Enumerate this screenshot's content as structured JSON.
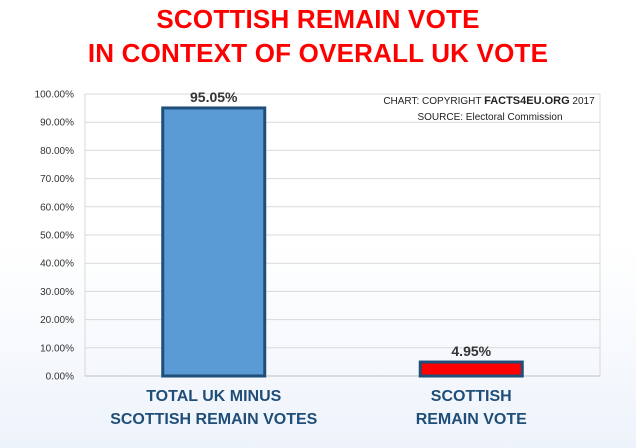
{
  "chart_data": {
    "type": "bar",
    "title": [
      "SCOTTISH REMAIN VOTE",
      "IN CONTEXT OF OVERALL UK VOTE"
    ],
    "categories": [
      [
        "TOTAL UK MINUS",
        "SCOTTISH REMAIN VOTES"
      ],
      [
        "SCOTTISH",
        "REMAIN VOTE"
      ]
    ],
    "values": [
      95.05,
      4.95
    ],
    "data_labels": [
      "95.05%",
      "4.95%"
    ],
    "bar_colors": [
      "#5b9bd5",
      "#ff0000"
    ],
    "bar_outline": "#1f4e79",
    "ylim": [
      0,
      100
    ],
    "yticks": [
      0,
      10,
      20,
      30,
      40,
      50,
      60,
      70,
      80,
      90,
      100
    ],
    "ytick_labels": [
      "0.00%",
      "10.00%",
      "20.00%",
      "30.00%",
      "40.00%",
      "50.00%",
      "60.00%",
      "70.00%",
      "80.00%",
      "90.00%",
      "100.00%"
    ],
    "grid": true,
    "xlabel": "",
    "ylabel": ""
  },
  "credit": {
    "line1_prefix": "CHART: COPYRIGHT ",
    "line1_brand": "FACTS4EU.ORG",
    "line1_suffix": " 2017",
    "line2": "SOURCE: Electoral Commission"
  },
  "colors": {
    "title": "#ff0000",
    "category_text": "#1f4e79"
  }
}
